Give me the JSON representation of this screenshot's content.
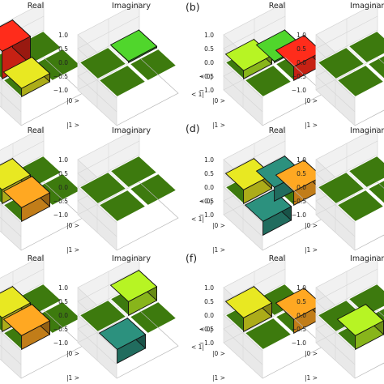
{
  "figure": {
    "panel_letters": [
      "(b)",
      "(d)",
      "(f)"
    ]
  },
  "colors": {
    "zero_tile": "#3d7a0e",
    "zero_tile_edge": "#2a5208",
    "pane": "#f1f1f1",
    "grid": "#d4d4d4",
    "outline": "#111111",
    "bar_red": "#ff2a1a",
    "bar_orange": "#f7a020",
    "bar_yellow": "#dddd20",
    "bar_lime": "#aee822",
    "bar_green": "#4ccc2a",
    "bar_teal": "#2a8a78"
  },
  "chart_data": [
    {
      "type": "bar3d",
      "panel": "a",
      "title": "Real",
      "x_ticklabels": [
        "|0 >",
        "|1 >"
      ],
      "y_ticklabels": [
        "< 0|",
        "< 1|"
      ],
      "zlim": [
        -1.0,
        1.0
      ],
      "z_ticks": [
        "1.0",
        "0.5",
        "0.0",
        "−0.5",
        "−1.0"
      ],
      "matrix": [
        [
          1.0,
          0.0
        ],
        [
          0.3,
          0.05
        ]
      ],
      "bar_colors": [
        [
          "bar_red",
          "zero"
        ],
        [
          "bar_yellow",
          "zero"
        ]
      ]
    },
    {
      "type": "bar3d",
      "panel": "a",
      "title": "Imaginary",
      "x_ticklabels": [
        "|0 >",
        "|1 >"
      ],
      "y_ticklabels": [
        "< 0|",
        "< 1|"
      ],
      "zlim": [
        -1.0,
        1.0
      ],
      "z_ticks": [
        "1.0",
        "0.5",
        "0.0",
        "−0.5",
        "−1.0"
      ],
      "matrix": [
        [
          0.0,
          0.05
        ],
        [
          -0.05,
          0.0
        ]
      ],
      "bar_colors": [
        [
          "zero",
          "bar_green"
        ],
        [
          "zero",
          "zero"
        ]
      ]
    },
    {
      "type": "bar3d",
      "panel": "b",
      "title": "Real",
      "x_ticklabels": [
        "|0 >",
        "|1 >"
      ],
      "y_ticklabels": [
        "< 0|",
        "< 1|"
      ],
      "zlim": [
        -1.0,
        1.0
      ],
      "z_ticks": [
        "1.0",
        "0.5",
        "0.0",
        "−0.5",
        "−1.0"
      ],
      "matrix": [
        [
          0.3,
          0.05
        ],
        [
          0.0,
          0.5
        ]
      ],
      "bar_colors": [
        [
          "bar_lime",
          "bar_green"
        ],
        [
          "zero",
          "bar_red"
        ]
      ]
    },
    {
      "type": "bar3d",
      "panel": "b",
      "title": "Imaginary",
      "x_ticklabels": [
        "|0 >",
        "|1 >"
      ],
      "y_ticklabels": [
        "< 0|",
        "< 1|"
      ],
      "zlim": [
        -1.0,
        1.0
      ],
      "z_ticks": [
        "1.0",
        "0.5",
        "0.0",
        "−0.5",
        "−1.0"
      ],
      "matrix": [
        [
          0.0,
          0.0
        ],
        [
          0.0,
          0.0
        ]
      ],
      "bar_colors": [
        [
          "zero",
          "zero"
        ],
        [
          "zero",
          "zero"
        ]
      ]
    },
    {
      "type": "bar3d",
      "panel": "c",
      "title": "Real",
      "x_ticklabels": [
        "|0 >",
        "|1 >"
      ],
      "y_ticklabels": [
        "< 0|",
        "< 1|"
      ],
      "zlim": [
        -1.0,
        1.0
      ],
      "z_ticks": [
        "1.0",
        "0.5",
        "0.0",
        "−0.5",
        "−1.0"
      ],
      "matrix": [
        [
          0.5,
          0.0
        ],
        [
          0.5,
          0.0
        ]
      ],
      "bar_colors": [
        [
          "bar_yellow",
          "bar_green"
        ],
        [
          "bar_orange",
          "zero"
        ]
      ]
    },
    {
      "type": "bar3d",
      "panel": "c",
      "title": "Imaginary",
      "x_ticklabels": [
        "|0 >",
        "|1 >"
      ],
      "y_ticklabels": [
        "< 0|",
        "< 1|"
      ],
      "zlim": [
        -1.0,
        1.0
      ],
      "z_ticks": [
        "1.0",
        "0.5",
        "0.0",
        "−0.5",
        "−1.0"
      ],
      "matrix": [
        [
          0.0,
          0.0
        ],
        [
          0.0,
          0.0
        ]
      ],
      "bar_colors": [
        [
          "zero",
          "zero"
        ],
        [
          "zero",
          "zero"
        ]
      ]
    },
    {
      "type": "bar3d",
      "panel": "d",
      "title": "Real",
      "x_ticklabels": [
        "|0 >",
        "|1 >"
      ],
      "y_ticklabels": [
        "< 0|",
        "< 1|"
      ],
      "zlim": [
        -1.0,
        1.0
      ],
      "z_ticks": [
        "1.0",
        "0.5",
        "0.0",
        "−0.5",
        "−1.0"
      ],
      "matrix": [
        [
          0.5,
          -0.5
        ],
        [
          -0.5,
          0.5
        ]
      ],
      "bar_colors": [
        [
          "bar_yellow",
          "bar_teal"
        ],
        [
          "bar_teal",
          "bar_orange"
        ]
      ]
    },
    {
      "type": "bar3d",
      "panel": "d",
      "title": "Imaginary",
      "x_ticklabels": [
        "|0 >",
        "|1 >"
      ],
      "y_ticklabels": [
        "< 0|",
        "< 1|"
      ],
      "zlim": [
        -1.0,
        1.0
      ],
      "z_ticks": [
        "1.0",
        "0.5",
        "0.0",
        "−0.5",
        "−1.0"
      ],
      "matrix": [
        [
          0.0,
          0.0
        ],
        [
          0.0,
          0.0
        ]
      ],
      "bar_colors": [
        [
          "zero",
          "zero"
        ],
        [
          "zero",
          "zero"
        ]
      ]
    },
    {
      "type": "bar3d",
      "panel": "e",
      "title": "Real",
      "x_ticklabels": [
        "|0 >",
        "|1 >"
      ],
      "y_ticklabels": [
        "< 0|",
        "< 1|"
      ],
      "zlim": [
        -1.0,
        1.0
      ],
      "z_ticks": [
        "1.0",
        "0.5",
        "0.0",
        "−0.5",
        "−1.0"
      ],
      "matrix": [
        [
          0.5,
          0.0
        ],
        [
          0.5,
          0.0
        ]
      ],
      "bar_colors": [
        [
          "bar_yellow",
          "zero"
        ],
        [
          "bar_orange",
          "zero"
        ]
      ]
    },
    {
      "type": "bar3d",
      "panel": "e",
      "title": "Imaginary",
      "x_ticklabels": [
        "|0 >",
        "|1 >"
      ],
      "y_ticklabels": [
        "< 0|",
        "< 1|"
      ],
      "zlim": [
        -1.0,
        1.0
      ],
      "z_ticks": [
        "1.0",
        "0.5",
        "0.0",
        "−0.5",
        "−1.0"
      ],
      "matrix": [
        [
          0.0,
          0.5
        ],
        [
          -0.5,
          0.0
        ]
      ],
      "bar_colors": [
        [
          "zero",
          "bar_lime"
        ],
        [
          "bar_teal",
          "zero"
        ]
      ]
    },
    {
      "type": "bar3d",
      "panel": "f",
      "title": "Real",
      "x_ticklabels": [
        "|0 >",
        "|1 >"
      ],
      "y_ticklabels": [
        "< 0|",
        "< 1|"
      ],
      "zlim": [
        -1.0,
        1.0
      ],
      "z_ticks": [
        "1.0",
        "0.5",
        "0.0",
        "−0.5",
        "−1.0"
      ],
      "matrix": [
        [
          0.5,
          0.0
        ],
        [
          0.0,
          0.5
        ]
      ],
      "bar_colors": [
        [
          "bar_yellow",
          "zero"
        ],
        [
          "zero",
          "bar_orange"
        ]
      ]
    },
    {
      "type": "bar3d",
      "panel": "f",
      "title": "Imaginary",
      "x_ticklabels": [
        "|0 >",
        "|1 >"
      ],
      "y_ticklabels": [
        "< 0|",
        "< 1|"
      ],
      "zlim": [
        -1.0,
        1.0
      ],
      "z_ticks": [
        "1.0",
        "0.5",
        "0.0",
        "−0.5",
        "−1.0"
      ],
      "matrix": [
        [
          0.0,
          -0.5
        ],
        [
          0.5,
          0.0
        ]
      ],
      "bar_colors": [
        [
          "zero",
          "zero"
        ],
        [
          "bar_lime",
          "zero"
        ]
      ]
    }
  ]
}
